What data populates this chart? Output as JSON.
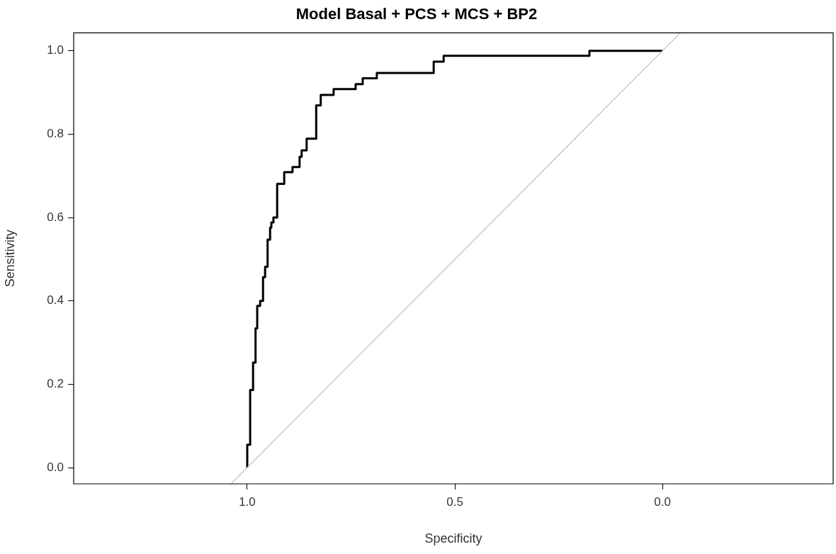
{
  "chart_data": {
    "type": "line",
    "title": "Model Basal + PCS + MCS + BP2",
    "xlabel": "Specificity",
    "ylabel": "Sensitivity",
    "xlim": [
      1.418,
      -0.411
    ],
    "ylim": [
      -0.039,
      1.043
    ],
    "xticks": [
      {
        "value": 1,
        "label": "1.0"
      },
      0.5,
      {
        "value": 0,
        "label": "0.0"
      }
    ],
    "yticks": [
      {
        "value": 0,
        "label": "0.0"
      },
      0.2,
      0.4,
      0.6,
      0.8,
      {
        "value": 1,
        "label": "1.0"
      }
    ],
    "grid": false,
    "legend": false,
    "marker": "none",
    "line_style": "solid",
    "series": [
      {
        "color": "#000000",
        "x": [
          1.0,
          1.0,
          0.993,
          0.993,
          0.986,
          0.986,
          0.98,
          0.98,
          0.976,
          0.976,
          0.969,
          0.969,
          0.962,
          0.962,
          0.957,
          0.957,
          0.951,
          0.951,
          0.945,
          0.945,
          0.942,
          0.942,
          0.937,
          0.937,
          0.928,
          0.928,
          0.911,
          0.911,
          0.891,
          0.891,
          0.874,
          0.874,
          0.869,
          0.869,
          0.857,
          0.857,
          0.834,
          0.834,
          0.823,
          0.823,
          0.792,
          0.792,
          0.739,
          0.739,
          0.722,
          0.722,
          0.688,
          0.688,
          0.551,
          0.551,
          0.527,
          0.527,
          0.176,
          0.176,
          0.0
        ],
        "values": [
          0.0,
          0.055,
          0.055,
          0.186,
          0.186,
          0.252,
          0.252,
          0.334,
          0.334,
          0.388,
          0.388,
          0.4,
          0.4,
          0.457,
          0.457,
          0.482,
          0.482,
          0.547,
          0.547,
          0.576,
          0.576,
          0.588,
          0.588,
          0.6,
          0.6,
          0.681,
          0.681,
          0.709,
          0.709,
          0.721,
          0.721,
          0.746,
          0.746,
          0.761,
          0.761,
          0.789,
          0.789,
          0.869,
          0.869,
          0.894,
          0.894,
          0.908,
          0.908,
          0.92,
          0.92,
          0.934,
          0.934,
          0.947,
          0.947,
          0.974,
          0.974,
          0.988,
          0.988,
          1.0,
          1.0
        ]
      },
      {
        "color": "#bebebe",
        "x": [
          1.039,
          -0.043
        ],
        "values": [
          -0.039,
          1.043
        ]
      }
    ]
  }
}
